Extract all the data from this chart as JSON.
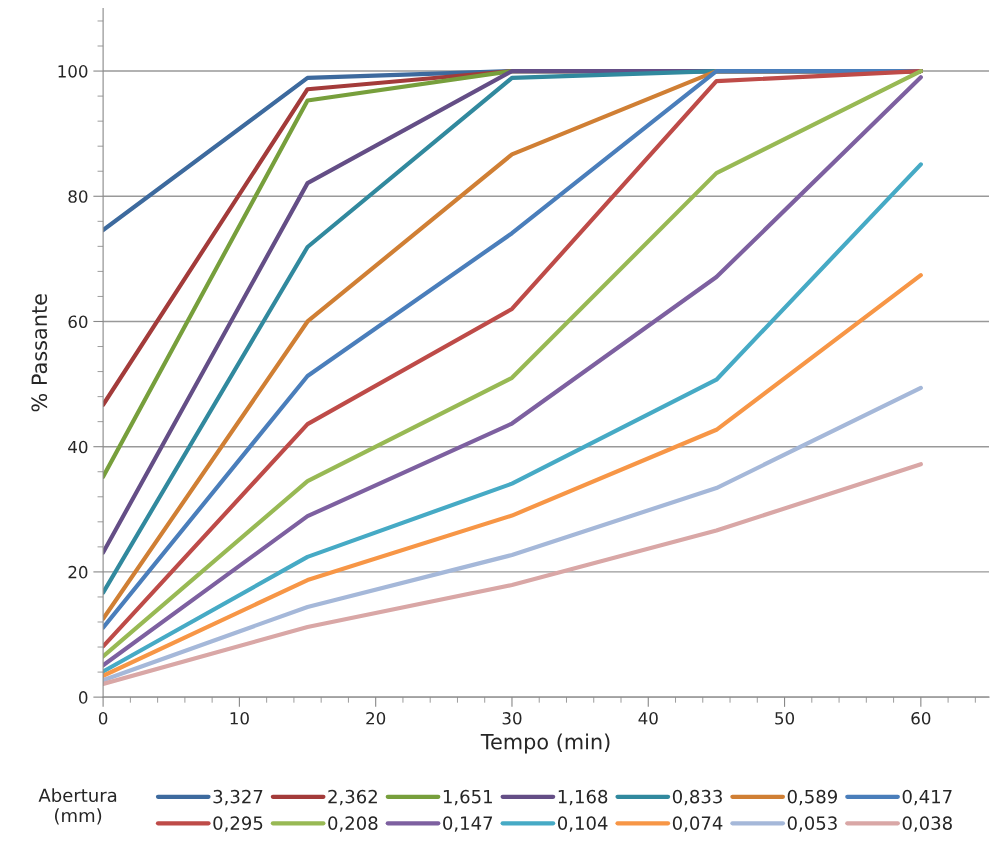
{
  "chart_data": {
    "type": "line",
    "xlabel": "Tempo (min)",
    "ylabel": "% Passante",
    "legend_title": "Abertura (mm)",
    "x": [
      0,
      15,
      30,
      45,
      60
    ],
    "xlim": [
      0,
      65
    ],
    "xticks": [
      0,
      10,
      20,
      30,
      40,
      50,
      60
    ],
    "ylim": [
      0,
      110
    ],
    "yticks": [
      0,
      20,
      40,
      60,
      80,
      100
    ],
    "grid": "y",
    "legend": "bottom",
    "marker": "none",
    "line_style": "solid",
    "series": [
      {
        "name": "3,327",
        "color": "#3d6a9e",
        "values": [
          74.6,
          98.9,
          100,
          100,
          100
        ]
      },
      {
        "name": "2,362",
        "color": "#a33b3a",
        "values": [
          46.7,
          97.1,
          100,
          100,
          100
        ]
      },
      {
        "name": "1,651",
        "color": "#779f3c",
        "values": [
          35.2,
          95.3,
          100,
          100,
          100
        ]
      },
      {
        "name": "1,168",
        "color": "#644e86",
        "values": [
          23.1,
          82.1,
          100,
          100,
          100
        ]
      },
      {
        "name": "0,833",
        "color": "#31899e",
        "values": [
          16.7,
          71.9,
          98.9,
          100,
          100
        ]
      },
      {
        "name": "0,589",
        "color": "#d07f34",
        "values": [
          12.5,
          60.0,
          86.7,
          100,
          100
        ]
      },
      {
        "name": "0,417",
        "color": "#4a7ebb",
        "values": [
          11.1,
          51.3,
          74.1,
          100,
          100
        ]
      },
      {
        "name": "0,295",
        "color": "#be4b48",
        "values": [
          8.1,
          43.6,
          62.0,
          98.4,
          100
        ]
      },
      {
        "name": "0,208",
        "color": "#98b954",
        "values": [
          6.5,
          34.5,
          51.0,
          83.7,
          100
        ]
      },
      {
        "name": "0,147",
        "color": "#7d60a0",
        "values": [
          5.1,
          28.9,
          43.7,
          67.1,
          99.0
        ]
      },
      {
        "name": "0,104",
        "color": "#46aac5",
        "values": [
          4.1,
          22.4,
          34.1,
          50.7,
          85.1
        ]
      },
      {
        "name": "0,074",
        "color": "#f79646",
        "values": [
          3.4,
          18.7,
          29.0,
          42.7,
          67.4
        ]
      },
      {
        "name": "0,053",
        "color": "#a5b8d9",
        "values": [
          2.7,
          14.4,
          22.7,
          33.4,
          49.4
        ]
      },
      {
        "name": "0,038",
        "color": "#d9a7a6",
        "values": [
          2.1,
          11.2,
          17.9,
          26.6,
          37.2
        ]
      }
    ]
  }
}
